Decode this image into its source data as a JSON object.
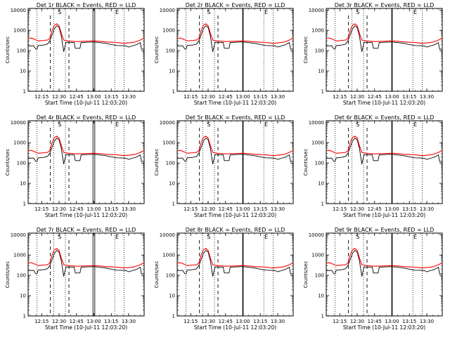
{
  "chart_data": {
    "type": "line",
    "panels": [
      {
        "title": "Det 1r  BLACK = Events, RED = LLD",
        "xlabel": "Start Time (10-Jul-11 12:03:20)",
        "ylabel": "Counts/sec",
        "solid_marker": "double"
      },
      {
        "title": "Det 2r  BLACK = Events, RED = LLD",
        "xlabel": "Start Time (10-Jul-11 12:03:20)",
        "ylabel": "Counts/sec",
        "solid_marker": "single"
      },
      {
        "title": "Det 3r  BLACK = Events, RED = LLD",
        "xlabel": "Start Time (10-Jul-11 12:03:20)",
        "ylabel": "Counts/sec",
        "solid_marker": "single"
      },
      {
        "title": "Det 4r  BLACK = Events, RED = LLD",
        "xlabel": "Start Time (10-Jul-11 12:03:20)",
        "ylabel": "Counts/sec",
        "solid_marker": "double"
      },
      {
        "title": "Det 5r  BLACK = Events, RED = LLD",
        "xlabel": "Start Time (10-Jul-11 12:03:20)",
        "ylabel": "Counts/sec",
        "solid_marker": "single"
      },
      {
        "title": "Det 6r  BLACK = Events, RED = LLD",
        "xlabel": "Start Time (10-Jul-11 12:03:20)",
        "ylabel": "Counts/sec",
        "solid_marker": "single"
      },
      {
        "title": "Det 7r  BLACK = Events, RED = LLD",
        "xlabel": "Start Time (10-Jul-11 12:03:20)",
        "ylabel": "Counts/sec",
        "solid_marker": "double"
      },
      {
        "title": "Det 8r  BLACK = Events, RED = LLD",
        "xlabel": "Start Time (10-Jul-11 12:03:20)",
        "ylabel": "Counts/sec",
        "solid_marker": "single"
      },
      {
        "title": "Det 9r  BLACK = Events, RED = LLD",
        "xlabel": "Start Time (10-Jul-11 12:03:20)",
        "ylabel": "Counts/sec",
        "solid_marker": "single"
      }
    ],
    "x_ticks": [
      "12:15",
      "12:30",
      "12:45",
      "13:00",
      "13:15",
      "13:30"
    ],
    "x_tick_minutes": [
      15,
      30,
      45,
      60,
      75,
      90
    ],
    "xlim_minutes": [
      3.33,
      103.33
    ],
    "y_ticks": [
      "1",
      "10",
      "100",
      "1000",
      "10000"
    ],
    "ylim": [
      1,
      12000
    ],
    "y_scale": "log",
    "markers": {
      "S_label": "S",
      "E_label": "E",
      "S_minutes": 30.5,
      "E_minutes": 80
    },
    "dashed_lines_minutes": [
      22.5,
      38.5
    ],
    "dotted_lines_minutes": [
      11,
      25.5,
      35.5,
      78,
      86
    ],
    "solid_line_minutes": 60,
    "series": [
      {
        "name": "Events",
        "color": "#000000",
        "points": [
          [
            3.33,
            170
          ],
          [
            8,
            175
          ],
          [
            10,
            120
          ],
          [
            11,
            120
          ],
          [
            12,
            180
          ],
          [
            17,
            190
          ],
          [
            20,
            210
          ],
          [
            22,
            300
          ],
          [
            24,
            600
          ],
          [
            26,
            1200
          ],
          [
            28,
            1700
          ],
          [
            30,
            1400
          ],
          [
            32,
            500
          ],
          [
            34,
            90
          ],
          [
            36,
            260
          ],
          [
            40,
            250
          ],
          [
            43,
            250
          ],
          [
            44,
            130
          ],
          [
            48,
            130
          ],
          [
            49,
            250
          ],
          [
            55,
            260
          ],
          [
            60,
            270
          ],
          [
            70,
            230
          ],
          [
            75,
            200
          ],
          [
            80,
            180
          ],
          [
            85,
            175
          ],
          [
            88,
            170
          ],
          [
            90,
            150
          ],
          [
            93,
            170
          ],
          [
            97,
            200
          ],
          [
            100,
            250
          ],
          [
            101,
            120
          ],
          [
            103.33,
            120
          ]
        ]
      },
      {
        "name": "LLD",
        "color": "#ff0000",
        "points": [
          [
            3.33,
            390
          ],
          [
            6,
            420
          ],
          [
            8,
            380
          ],
          [
            12,
            300
          ],
          [
            17,
            320
          ],
          [
            20,
            330
          ],
          [
            22,
            400
          ],
          [
            24,
            1000
          ],
          [
            26,
            1800
          ],
          [
            28,
            2100
          ],
          [
            30,
            1700
          ],
          [
            32,
            700
          ],
          [
            34,
            330
          ],
          [
            38,
            300
          ],
          [
            45,
            280
          ],
          [
            52,
            290
          ],
          [
            60,
            300
          ],
          [
            65,
            290
          ],
          [
            70,
            270
          ],
          [
            80,
            250
          ],
          [
            86,
            230
          ],
          [
            90,
            240
          ],
          [
            95,
            260
          ],
          [
            100,
            330
          ],
          [
            103.33,
            420
          ]
        ]
      }
    ]
  }
}
